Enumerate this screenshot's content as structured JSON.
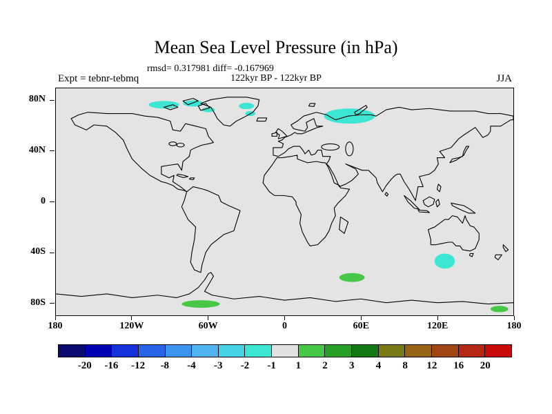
{
  "header": {
    "title": "Mean Sea Level Pressure (in hPa)",
    "stats_line": "rmsd= 0.317981 diff= -0.167969",
    "period_line": "122kyr BP - 122kyr BP",
    "experiment_label": "Expt = tebnr-tebmq",
    "season_label": "JJA"
  },
  "axes": {
    "lat_ticks": [
      {
        "label": "80N",
        "lat": 80
      },
      {
        "label": "40N",
        "lat": 40
      },
      {
        "label": "0",
        "lat": 0
      },
      {
        "label": "40S",
        "lat": -40
      },
      {
        "label": "80S",
        "lat": -80
      }
    ],
    "lon_ticks": [
      {
        "label": "180",
        "lon": -180
      },
      {
        "label": "120W",
        "lon": -120
      },
      {
        "label": "60W",
        "lon": -60
      },
      {
        "label": "0",
        "lon": 0
      },
      {
        "label": "60E",
        "lon": 60
      },
      {
        "label": "120E",
        "lon": 120
      },
      {
        "label": "180",
        "lon": 180
      }
    ]
  },
  "colorbar": {
    "cell_colors": [
      "#0a0a70",
      "#0000b4",
      "#1432dc",
      "#2864e6",
      "#3c96f0",
      "#50b4f0",
      "#46d2e6",
      "#3ce6d2",
      "#e1e1e1",
      "#46c846",
      "#28a028",
      "#147814",
      "#787814",
      "#966414",
      "#a04614",
      "#b42814",
      "#c80a0a"
    ],
    "tick_labels": [
      "-20",
      "-16",
      "-12",
      "-8",
      "-4",
      "-3",
      "-2",
      "-1",
      "1",
      "2",
      "3",
      "4",
      "8",
      "12",
      "16",
      "20"
    ]
  },
  "map": {
    "background_color": "#e4e4e4",
    "coastline_color": "#000000",
    "patches": [
      {
        "name": "canadian-arctic-west",
        "lon": -95,
        "lat": 77,
        "rx": 12,
        "ry": 3,
        "color": "#3ce6d2"
      },
      {
        "name": "canadian-arctic-east",
        "lon": -72,
        "lat": 78,
        "rx": 8,
        "ry": 2.5,
        "color": "#3ce6d2"
      },
      {
        "name": "baffin-bay",
        "lon": -60,
        "lat": 73,
        "rx": 5,
        "ry": 2,
        "color": "#3ce6d2"
      },
      {
        "name": "greenland-north",
        "lon": -30,
        "lat": 76,
        "rx": 6,
        "ry": 2.5,
        "color": "#3ce6d2"
      },
      {
        "name": "greenland-east",
        "lon": -27,
        "lat": 70,
        "rx": 4,
        "ry": 2,
        "color": "#3ce6d2"
      },
      {
        "name": "barents-kara-sea",
        "lon": 51,
        "lat": 68,
        "rx": 20,
        "ry": 6,
        "color": "#3ce6d2"
      },
      {
        "name": "south-of-australia",
        "lon": 126,
        "lat": -47,
        "rx": 8,
        "ry": 6,
        "color": "#3ce6d2"
      },
      {
        "name": "southern-indian-ocean",
        "lon": 53,
        "lat": -60,
        "rx": 10,
        "ry": 3.5,
        "color": "#46c846"
      },
      {
        "name": "antarctic-peninsula-coast",
        "lon": -66,
        "lat": -81,
        "rx": 15,
        "ry": 3,
        "color": "#46c846"
      },
      {
        "name": "ross-sea",
        "lon": 169,
        "lat": -85,
        "rx": 7,
        "ry": 2.5,
        "color": "#46c846"
      }
    ]
  },
  "chart_data": {
    "type": "heatmap",
    "title": "Mean Sea Level Pressure (in hPa)",
    "subtitle": "122kyr BP - 122kyr BP",
    "season": "JJA",
    "experiment": "tebnr-tebmq",
    "rmsd": 0.317981,
    "diff": -0.167969,
    "units": "hPa",
    "projection": "equirectangular",
    "lon_range": [
      -180,
      180
    ],
    "lat_range": [
      -90,
      90
    ],
    "contour_levels": [
      -20,
      -16,
      -12,
      -8,
      -4,
      -3,
      -2,
      -1,
      1,
      2,
      3,
      4,
      8,
      12,
      16,
      20
    ],
    "palette": [
      "#0a0a70",
      "#0000b4",
      "#1432dc",
      "#2864e6",
      "#3c96f0",
      "#50b4f0",
      "#46d2e6",
      "#3ce6d2",
      "#e1e1e1",
      "#46c846",
      "#28a028",
      "#147814",
      "#787814",
      "#966414",
      "#a04614",
      "#b42814",
      "#c80a0a"
    ],
    "background_bin": "-1 to 1 hPa (near-zero difference, light gray, covers most of globe)",
    "anomaly_regions": [
      {
        "region": "Canadian Arctic Archipelago (west)",
        "lon": [
          -107,
          -83
        ],
        "lat": [
          74,
          80
        ],
        "value_bin": "-2 to -1"
      },
      {
        "region": "Canadian Arctic Archipelago (east)",
        "lon": [
          -80,
          -64
        ],
        "lat": [
          75,
          81
        ],
        "value_bin": "-2 to -1"
      },
      {
        "region": "Baffin Bay",
        "lon": [
          -65,
          -55
        ],
        "lat": [
          71,
          75
        ],
        "value_bin": "-2 to -1"
      },
      {
        "region": "Northern Greenland",
        "lon": [
          -36,
          -24
        ],
        "lat": [
          73,
          79
        ],
        "value_bin": "-2 to -1"
      },
      {
        "region": "East Greenland coast",
        "lon": [
          -31,
          -23
        ],
        "lat": [
          68,
          72
        ],
        "value_bin": "-2 to -1"
      },
      {
        "region": "Barents / Kara Sea",
        "lon": [
          31,
          71
        ],
        "lat": [
          62,
          74
        ],
        "value_bin": "-2 to -1"
      },
      {
        "region": "South of Australia",
        "lon": [
          118,
          134
        ],
        "lat": [
          -53,
          -41
        ],
        "value_bin": "-2 to -1"
      },
      {
        "region": "Southern Indian Ocean (~60S)",
        "lon": [
          43,
          63
        ],
        "lat": [
          -64,
          -57
        ],
        "value_bin": "1 to 2"
      },
      {
        "region": "Antarctic coast near Peninsula",
        "lon": [
          -81,
          -51
        ],
        "lat": [
          -84,
          -78
        ],
        "value_bin": "1 to 2"
      },
      {
        "region": "Ross Sea sector",
        "lon": [
          162,
          176
        ],
        "lat": [
          -88,
          -82
        ],
        "value_bin": "1 to 2"
      }
    ],
    "legend_position": "bottom",
    "grid": false
  }
}
